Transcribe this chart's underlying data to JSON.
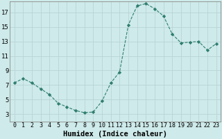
{
  "x": [
    0,
    1,
    2,
    3,
    4,
    5,
    6,
    7,
    8,
    9,
    10,
    11,
    12,
    13,
    14,
    15,
    16,
    17,
    18,
    19,
    20,
    21,
    22,
    23
  ],
  "y": [
    7.3,
    7.9,
    7.3,
    6.5,
    5.7,
    4.5,
    4.0,
    3.5,
    3.2,
    3.3,
    4.8,
    7.3,
    8.8,
    15.3,
    17.9,
    18.2,
    17.5,
    16.5,
    14.0,
    12.8,
    12.9,
    13.0,
    11.8,
    12.7
  ],
  "line_color": "#2e7d6e",
  "marker": "D",
  "marker_size": 2.2,
  "bg_color": "#ceeaea",
  "grid_color": "#b8d4d4",
  "xlabel": "Humidex (Indice chaleur)",
  "xlim": [
    -0.5,
    23.5
  ],
  "ylim": [
    2.0,
    18.5
  ],
  "yticks": [
    3,
    5,
    7,
    9,
    11,
    13,
    15,
    17
  ],
  "xticks": [
    0,
    1,
    2,
    3,
    4,
    5,
    6,
    7,
    8,
    9,
    10,
    11,
    12,
    13,
    14,
    15,
    16,
    17,
    18,
    19,
    20,
    21,
    22,
    23
  ],
  "xtick_labels": [
    "0",
    "1",
    "2",
    "3",
    "4",
    "5",
    "6",
    "7",
    "8",
    "9",
    "10",
    "11",
    "12",
    "13",
    "14",
    "15",
    "16",
    "17",
    "18",
    "19",
    "20",
    "21",
    "22",
    "23"
  ],
  "xtick_fontsize": 6.0,
  "ytick_fontsize": 6.5,
  "xlabel_fontsize": 7.5
}
